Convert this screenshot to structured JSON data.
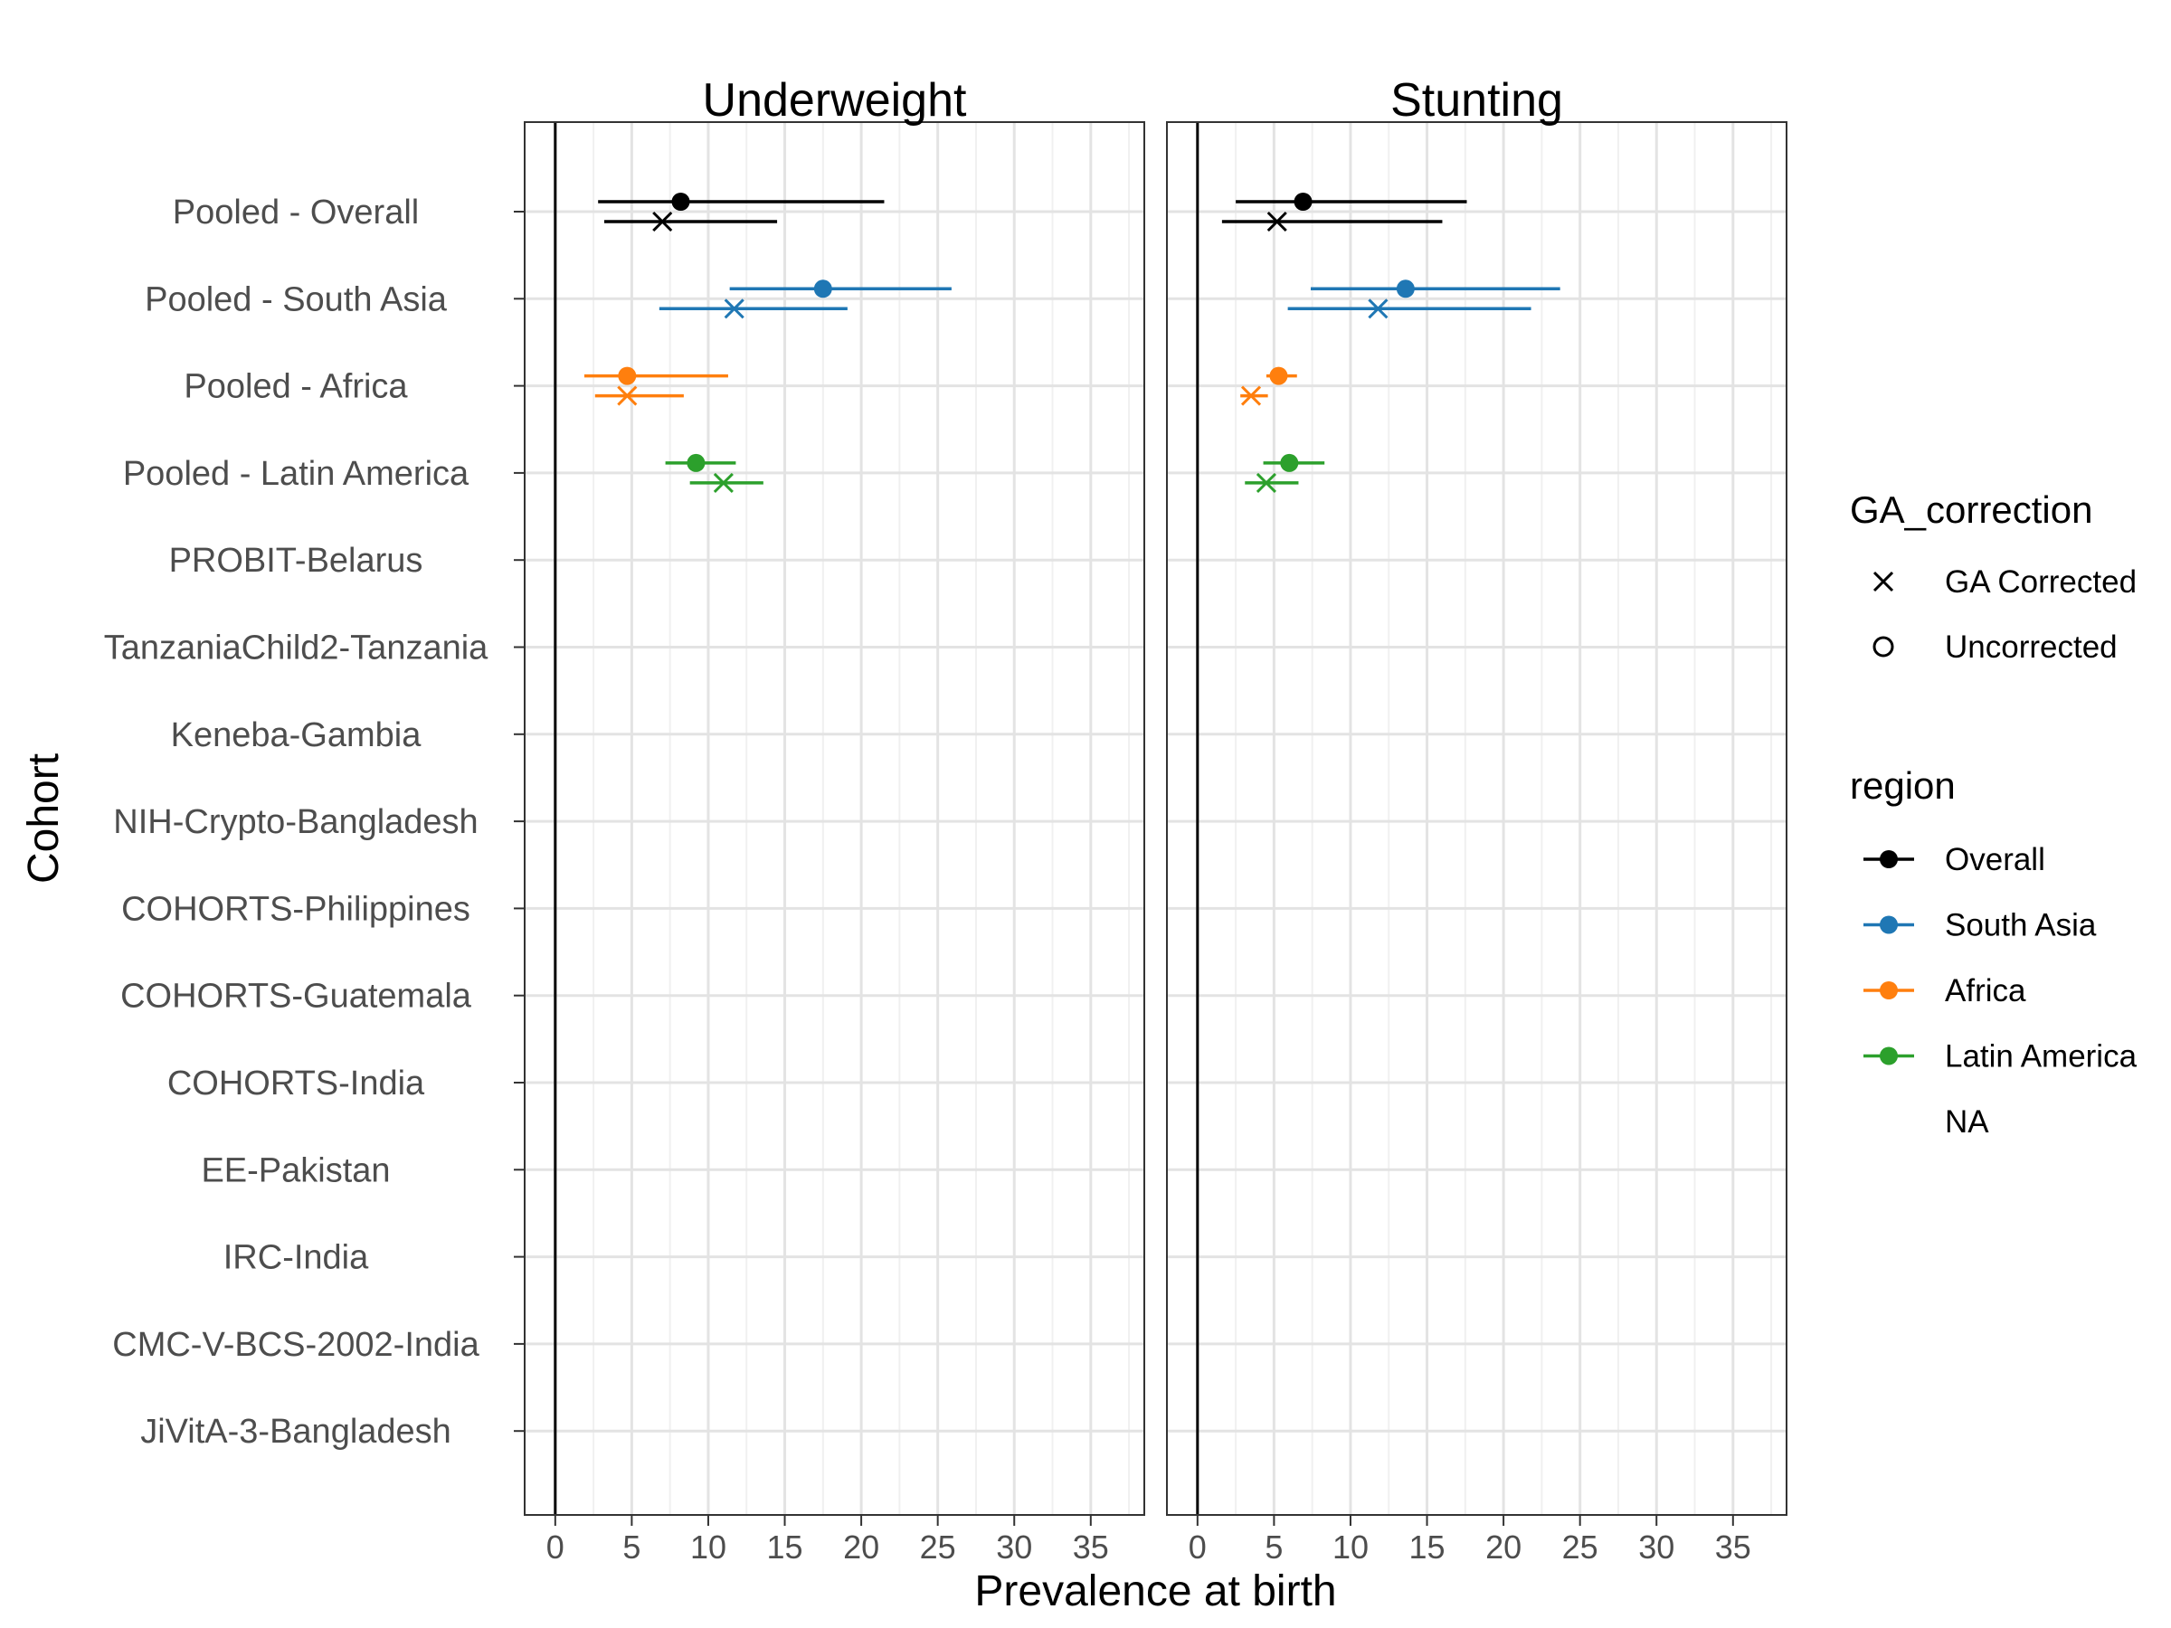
{
  "chart_data": {
    "type": "scatter",
    "subtype": "forest-plot",
    "xlabel": "Prevalence at birth",
    "ylabel": "Cohort",
    "xlim": [
      -2,
      38.5
    ],
    "xticks": [
      0,
      5,
      10,
      15,
      20,
      25,
      30,
      35
    ],
    "grid": true,
    "reference_line_x": 0,
    "legend_position": "right",
    "panels": [
      "Underweight",
      "Stunting"
    ],
    "categories": [
      "Pooled - Overall",
      "Pooled - South Asia",
      "Pooled - Africa",
      "Pooled - Latin America",
      "PROBIT-Belarus",
      "TanzaniaChild2-Tanzania",
      "Keneba-Gambia",
      "NIH-Crypto-Bangladesh",
      "COHORTS-Philippines",
      "COHORTS-Guatemala",
      "COHORTS-India",
      "EE-Pakistan",
      "IRC-India",
      "CMC-V-BCS-2002-India",
      "JiVitA-3-Bangladesh"
    ],
    "legends": {
      "shape": {
        "title": "GA_correction",
        "items": [
          {
            "label": "GA Corrected",
            "shape": "cross"
          },
          {
            "label": "Uncorrected",
            "shape": "circle"
          }
        ]
      },
      "color": {
        "title": "region",
        "items": [
          {
            "label": "Overall",
            "color": "#000000"
          },
          {
            "label": "South Asia",
            "color": "#1f77b4"
          },
          {
            "label": "Africa",
            "color": "#ff7f0e"
          },
          {
            "label": "Latin America",
            "color": "#2ca02c"
          },
          {
            "label": "NA",
            "color": null
          }
        ]
      }
    },
    "series": [
      {
        "panel": "Underweight",
        "cohort": "Pooled - Overall",
        "region": "Overall",
        "ga": "Uncorrected",
        "est": 8.2,
        "lo": 2.8,
        "hi": 21.5
      },
      {
        "panel": "Underweight",
        "cohort": "Pooled - Overall",
        "region": "Overall",
        "ga": "GA Corrected",
        "est": 7.0,
        "lo": 3.2,
        "hi": 14.5
      },
      {
        "panel": "Underweight",
        "cohort": "Pooled - South Asia",
        "region": "South Asia",
        "ga": "Uncorrected",
        "est": 17.5,
        "lo": 11.4,
        "hi": 25.9
      },
      {
        "panel": "Underweight",
        "cohort": "Pooled - South Asia",
        "region": "South Asia",
        "ga": "GA Corrected",
        "est": 11.7,
        "lo": 6.8,
        "hi": 19.1
      },
      {
        "panel": "Underweight",
        "cohort": "Pooled - Africa",
        "region": "Africa",
        "ga": "Uncorrected",
        "est": 4.7,
        "lo": 1.9,
        "hi": 11.3
      },
      {
        "panel": "Underweight",
        "cohort": "Pooled - Africa",
        "region": "Africa",
        "ga": "GA Corrected",
        "est": 4.7,
        "lo": 2.6,
        "hi": 8.4
      },
      {
        "panel": "Underweight",
        "cohort": "Pooled - Latin America",
        "region": "Latin America",
        "ga": "Uncorrected",
        "est": 9.2,
        "lo": 7.2,
        "hi": 11.8
      },
      {
        "panel": "Underweight",
        "cohort": "Pooled - Latin America",
        "region": "Latin America",
        "ga": "GA Corrected",
        "est": 11.0,
        "lo": 8.8,
        "hi": 13.6
      },
      {
        "panel": "Stunting",
        "cohort": "Pooled - Overall",
        "region": "Overall",
        "ga": "Uncorrected",
        "est": 6.9,
        "lo": 2.5,
        "hi": 17.6
      },
      {
        "panel": "Stunting",
        "cohort": "Pooled - Overall",
        "region": "Overall",
        "ga": "GA Corrected",
        "est": 5.2,
        "lo": 1.6,
        "hi": 16.0
      },
      {
        "panel": "Stunting",
        "cohort": "Pooled - South Asia",
        "region": "South Asia",
        "ga": "Uncorrected",
        "est": 13.6,
        "lo": 7.4,
        "hi": 23.7
      },
      {
        "panel": "Stunting",
        "cohort": "Pooled - South Asia",
        "region": "South Asia",
        "ga": "GA Corrected",
        "est": 11.8,
        "lo": 5.9,
        "hi": 21.8
      },
      {
        "panel": "Stunting",
        "cohort": "Pooled - Africa",
        "region": "Africa",
        "ga": "Uncorrected",
        "est": 5.3,
        "lo": 4.5,
        "hi": 6.5
      },
      {
        "panel": "Stunting",
        "cohort": "Pooled - Africa",
        "region": "Africa",
        "ga": "GA Corrected",
        "est": 3.5,
        "lo": 2.8,
        "hi": 4.6
      },
      {
        "panel": "Stunting",
        "cohort": "Pooled - Latin America",
        "region": "Latin America",
        "ga": "Uncorrected",
        "est": 6.0,
        "lo": 4.3,
        "hi": 8.3
      },
      {
        "panel": "Stunting",
        "cohort": "Pooled - Latin America",
        "region": "Latin America",
        "ga": "GA Corrected",
        "est": 4.5,
        "lo": 3.1,
        "hi": 6.6
      }
    ]
  }
}
